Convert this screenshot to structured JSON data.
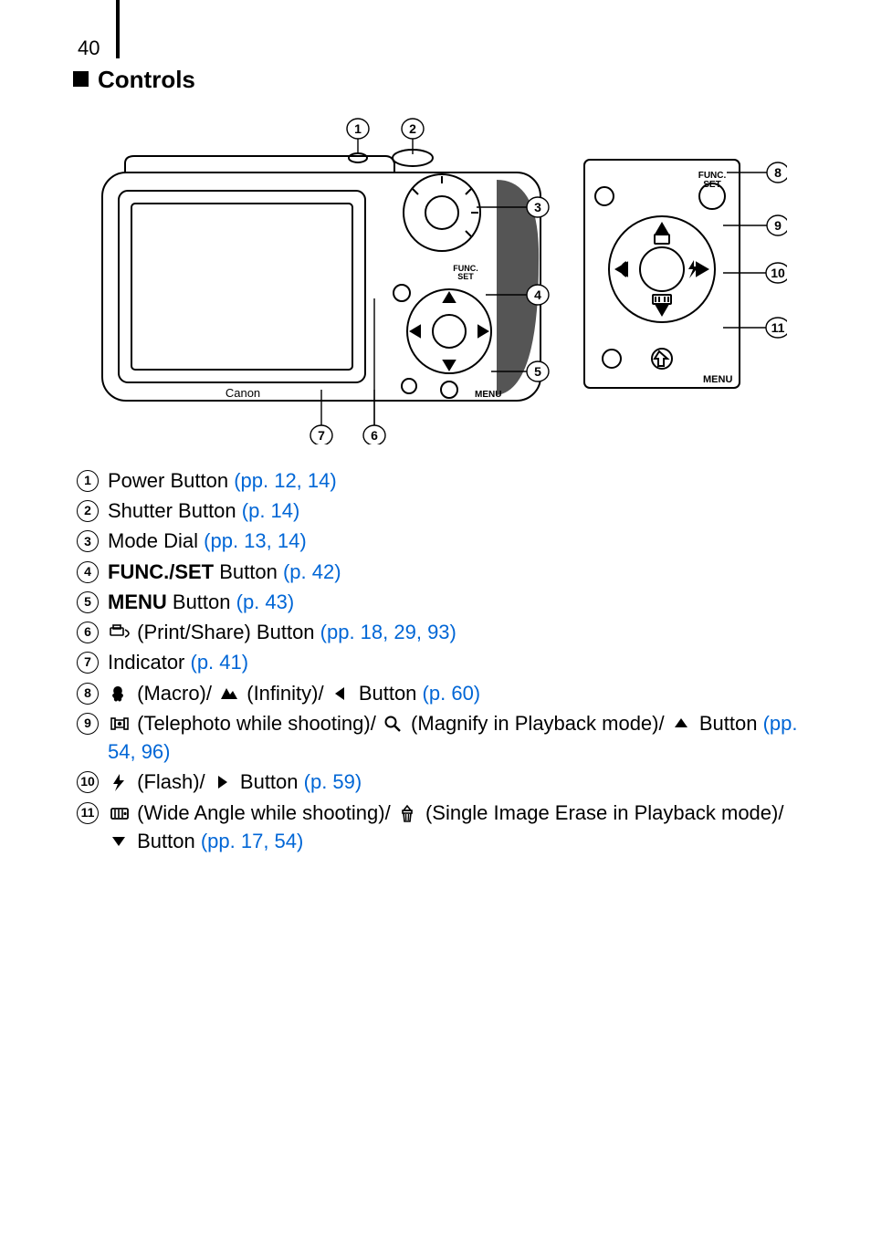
{
  "page_number": "40",
  "heading": "Controls",
  "link_color": "#0066d6",
  "diagram": {
    "brand_label": "Canon",
    "func_label_top": "FUNC.",
    "func_label_bottom": "SET",
    "menu_label": "MENU",
    "callouts": [
      "1",
      "2",
      "3",
      "4",
      "5",
      "6",
      "7",
      "8",
      "9",
      "10",
      "11"
    ]
  },
  "items": [
    {
      "n": "1",
      "parts": [
        {
          "t": "Power Button "
        },
        {
          "t": "(pp. 12, 14)",
          "link": true
        }
      ]
    },
    {
      "n": "2",
      "parts": [
        {
          "t": "Shutter Button "
        },
        {
          "t": "(p. 14)",
          "link": true
        }
      ]
    },
    {
      "n": "3",
      "parts": [
        {
          "t": "Mode Dial "
        },
        {
          "t": "(pp. 13, 14)",
          "link": true
        }
      ]
    },
    {
      "n": "4",
      "parts": [
        {
          "t": "FUNC./SET",
          "bold": true
        },
        {
          "t": " Button "
        },
        {
          "t": "(p. 42)",
          "link": true
        }
      ]
    },
    {
      "n": "5",
      "parts": [
        {
          "t": "MENU",
          "bold": true
        },
        {
          "t": " Button "
        },
        {
          "t": "(p. 43)",
          "link": true
        }
      ]
    },
    {
      "n": "6",
      "parts": [
        {
          "icon": "print"
        },
        {
          "t": "  (Print/Share) Button "
        },
        {
          "t": "(pp. 18, 29, 93)",
          "link": true
        }
      ]
    },
    {
      "n": "7",
      "parts": [
        {
          "t": "Indicator "
        },
        {
          "t": "(p. 41)",
          "link": true
        }
      ]
    },
    {
      "n": "8",
      "parts": [
        {
          "icon": "macro"
        },
        {
          "t": " (Macro)/ "
        },
        {
          "icon": "mountain"
        },
        {
          "t": " (Infinity)/ "
        },
        {
          "icon": "left"
        },
        {
          "t": " Button "
        },
        {
          "t": "(p. 60)",
          "link": true
        }
      ]
    },
    {
      "n": "9",
      "parts": [
        {
          "icon": "tele"
        },
        {
          "t": "  (Telephoto while shooting)/ "
        },
        {
          "icon": "magnify"
        },
        {
          "t": " (Magnify in Playback mode)/ "
        },
        {
          "icon": "up"
        },
        {
          "t": " Button "
        },
        {
          "t": "(pp. 54, 96)",
          "link": true
        }
      ]
    },
    {
      "n": "10",
      "parts": [
        {
          "icon": "flash"
        },
        {
          "t": " (Flash)/ "
        },
        {
          "icon": "right"
        },
        {
          "t": " Button "
        },
        {
          "t": "(p. 59)",
          "link": true
        }
      ]
    },
    {
      "n": "11",
      "parts": [
        {
          "icon": "wide"
        },
        {
          "t": " (Wide Angle while shooting)/ "
        },
        {
          "icon": "erase"
        },
        {
          "t": "  (Single Image Erase in Playback mode)/ "
        },
        {
          "icon": "down"
        },
        {
          "t": " Button "
        },
        {
          "t": "(pp. 17, 54)",
          "link": true
        }
      ]
    }
  ]
}
